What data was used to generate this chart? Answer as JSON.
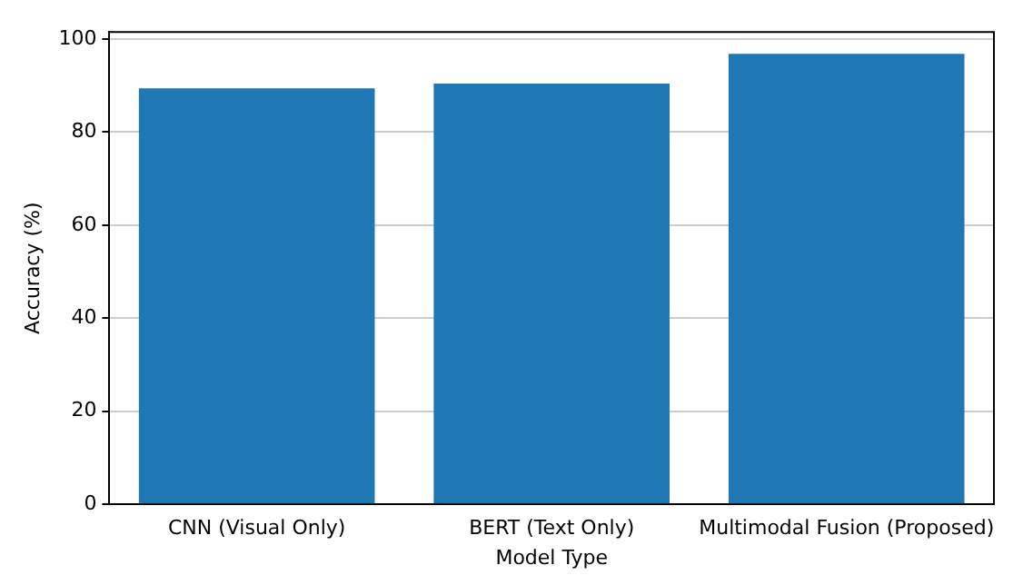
{
  "chart_data": {
    "type": "bar",
    "xlabel": "Model Type",
    "ylabel": "Accuracy (%)",
    "categories": [
      "CNN (Visual Only)",
      "BERT (Text Only)",
      "Multimodal Fusion (Proposed)"
    ],
    "values": [
      89.4,
      90.4,
      96.8
    ],
    "color": "#1f77b4",
    "ylim": [
      0,
      101.5
    ],
    "yticks": [
      0,
      20,
      40,
      60,
      80,
      100
    ],
    "grid": "y",
    "legend": false
  }
}
